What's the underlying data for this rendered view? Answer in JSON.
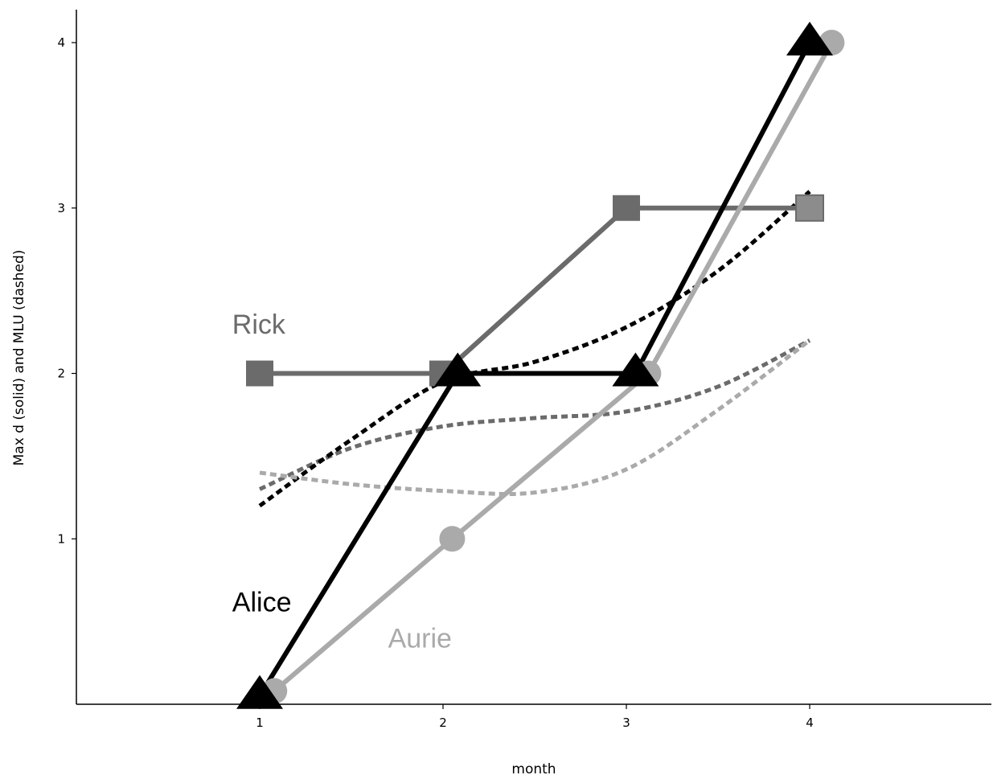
{
  "chart_data": {
    "type": "line",
    "xlabel": "month",
    "ylabel": "Max d (solid) and MLU (dashed)",
    "x_ticks": [
      "1",
      "2",
      "3",
      "4"
    ],
    "y_ticks": [
      "1",
      "2",
      "3",
      "4"
    ],
    "xlim": [
      0,
      5
    ],
    "ylim": [
      0,
      4.2
    ],
    "grid": false,
    "series": [
      {
        "name": "Rick",
        "color": "#6b6b6b",
        "marker": "square",
        "solid": [
          [
            1,
            2
          ],
          [
            2,
            2
          ],
          [
            3,
            3
          ],
          [
            4,
            3
          ]
        ],
        "dashed": [
          [
            1,
            1.3
          ],
          [
            1.5,
            1.55
          ],
          [
            2,
            1.68
          ],
          [
            2.5,
            1.73
          ],
          [
            3,
            1.77
          ],
          [
            3.5,
            1.92
          ],
          [
            4,
            2.2
          ]
        ]
      },
      {
        "name": "Alice",
        "color": "#000000",
        "marker": "triangle",
        "solid": [
          [
            1,
            0.05
          ],
          [
            2.08,
            2
          ],
          [
            3.05,
            2
          ],
          [
            4,
            4
          ]
        ],
        "dashed": [
          [
            1,
            1.2
          ],
          [
            1.5,
            1.6
          ],
          [
            2,
            1.95
          ],
          [
            2.5,
            2.07
          ],
          [
            3,
            2.28
          ],
          [
            3.5,
            2.62
          ],
          [
            4,
            3.1
          ]
        ]
      },
      {
        "name": "Aurie",
        "color": "#aaaaaa",
        "marker": "circle",
        "solid": [
          [
            1.08,
            0.08
          ],
          [
            2.05,
            1
          ],
          [
            3.12,
            2
          ],
          [
            4.12,
            4
          ]
        ],
        "dashed": [
          [
            1,
            1.4
          ],
          [
            1.5,
            1.33
          ],
          [
            2,
            1.29
          ],
          [
            2.5,
            1.28
          ],
          [
            3,
            1.42
          ],
          [
            3.5,
            1.78
          ],
          [
            4,
            2.2
          ]
        ]
      }
    ],
    "labels": [
      {
        "text": "Rick",
        "x": 0.85,
        "y": 2.3,
        "color": "#6b6b6b"
      },
      {
        "text": "Alice",
        "x": 0.85,
        "y": 0.62,
        "color": "#000000"
      },
      {
        "text": "Aurie",
        "x": 1.7,
        "y": 0.4,
        "color": "#aaaaaa"
      }
    ]
  }
}
